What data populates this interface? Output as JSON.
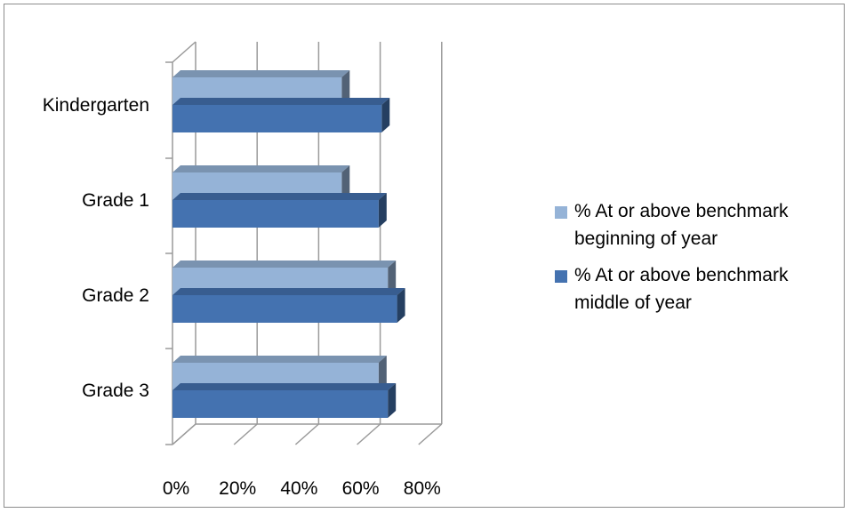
{
  "chart_data": {
    "type": "bar",
    "orientation": "horizontal",
    "style": "3d-clustered",
    "title": "",
    "xlabel": "",
    "ylabel": "",
    "categories": [
      "Kindergarten",
      "Grade 1",
      "Grade 2",
      "Grade 3"
    ],
    "series": [
      {
        "name": "% At or above benchmark beginning of year",
        "name_lines": [
          "% At or above benchmark",
          "beginning of year"
        ],
        "color": "#95b3d7",
        "values": [
          55,
          55,
          70,
          67
        ]
      },
      {
        "name": "% At or above benchmark middle of year",
        "name_lines": [
          "% At or above benchmark",
          "middle of year"
        ],
        "color": "#4472b0",
        "values": [
          68,
          67,
          73,
          70
        ]
      }
    ],
    "xlim": [
      0,
      80
    ],
    "xticks": [
      "0%",
      "20%",
      "40%",
      "60%",
      "80%"
    ],
    "xtick_values": [
      0,
      20,
      40,
      60,
      80
    ],
    "grid": true,
    "legend": "right"
  }
}
